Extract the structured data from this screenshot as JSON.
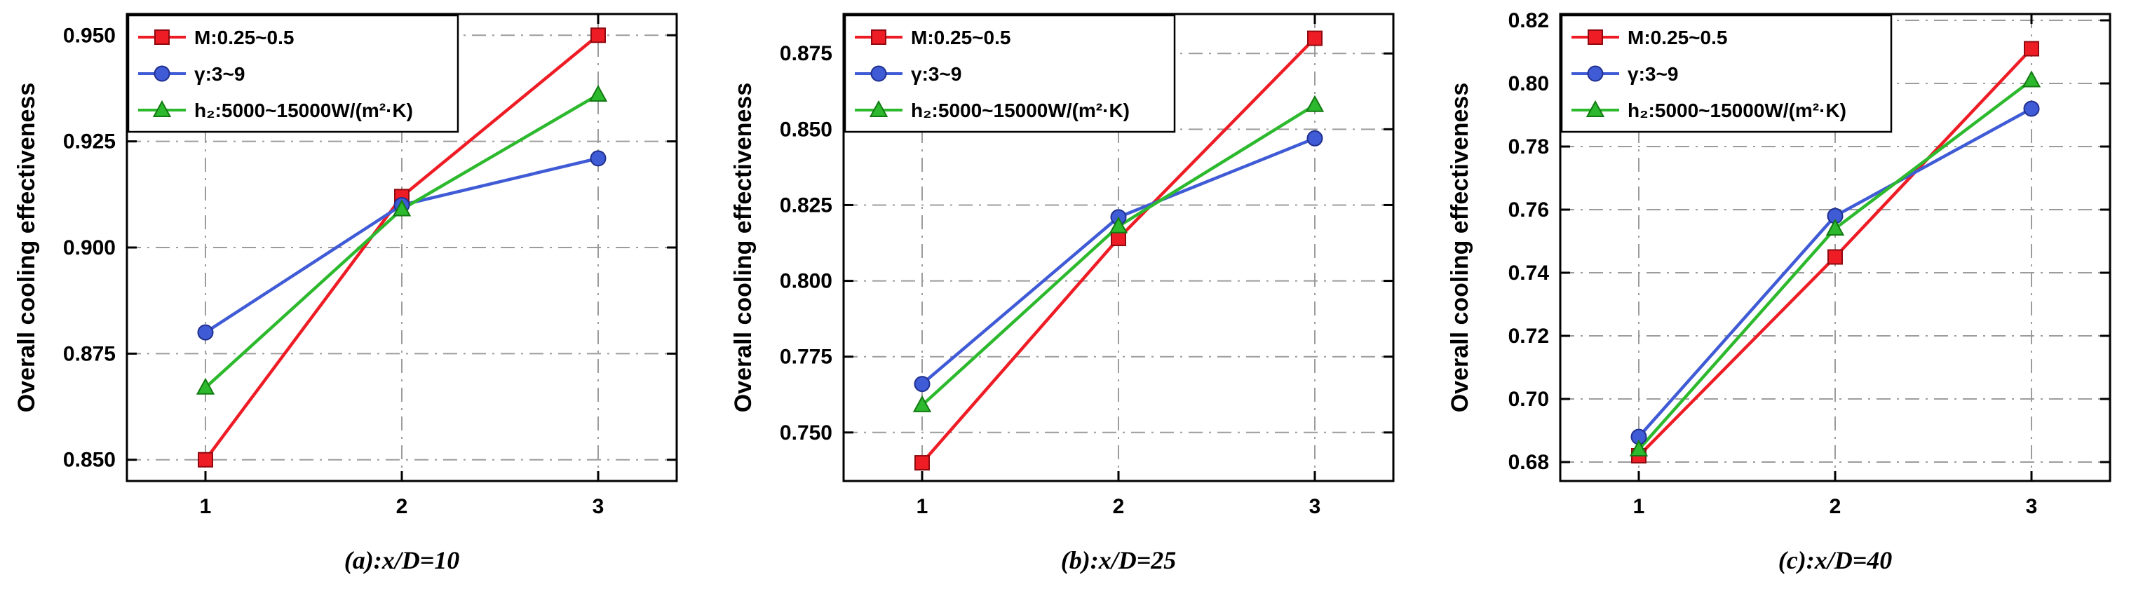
{
  "figure": {
    "ylabel": "Overall cooling effectiveness",
    "legend_entries": [
      "M:0.25~0.5",
      "γ:3~9",
      "h₂:5000~15000W/(m²·K)"
    ],
    "grid_color": "#9c9c9c",
    "frame_color": "#000000"
  },
  "chart_data": [
    {
      "type": "line",
      "caption": "(a):x/D=10",
      "title": "",
      "xlabel": "",
      "ylabel": "Overall cooling effectiveness",
      "x": [
        1,
        2,
        3
      ],
      "xticks": [
        "1",
        "2",
        "3"
      ],
      "xlim": [
        0.6,
        3.4
      ],
      "ylim": [
        0.845,
        0.955
      ],
      "yticks": [
        "0.850",
        "0.875",
        "0.900",
        "0.925",
        "0.950"
      ],
      "grid": "dash-dot",
      "legend_position": "top-left",
      "series": [
        {
          "name": "M:0.25~0.5",
          "marker": "square",
          "color": "#ee1c25",
          "edge": "#8f0a10",
          "values": [
            0.85,
            0.912,
            0.95
          ]
        },
        {
          "name": "γ:3~9",
          "marker": "circle",
          "color": "#3f5bd5",
          "edge": "#20308f",
          "values": [
            0.88,
            0.91,
            0.921
          ]
        },
        {
          "name": "h₂:5000~15000W/(m²·K)",
          "marker": "triangle",
          "color": "#2db92d",
          "edge": "#127a12",
          "values": [
            0.867,
            0.909,
            0.936
          ]
        }
      ]
    },
    {
      "type": "line",
      "caption": "(b):x/D=25",
      "title": "",
      "xlabel": "",
      "ylabel": "Overall cooling effectiveness",
      "x": [
        1,
        2,
        3
      ],
      "xticks": [
        "1",
        "2",
        "3"
      ],
      "xlim": [
        0.6,
        3.4
      ],
      "ylim": [
        0.734,
        0.888
      ],
      "yticks": [
        "0.750",
        "0.775",
        "0.800",
        "0.825",
        "0.850",
        "0.875"
      ],
      "grid": "dash-dot",
      "legend_position": "top-left",
      "series": [
        {
          "name": "M:0.25~0.5",
          "marker": "square",
          "color": "#ee1c25",
          "edge": "#8f0a10",
          "values": [
            0.74,
            0.814,
            0.88
          ]
        },
        {
          "name": "γ:3~9",
          "marker": "circle",
          "color": "#3f5bd5",
          "edge": "#20308f",
          "values": [
            0.766,
            0.821,
            0.847
          ]
        },
        {
          "name": "h₂:5000~15000W/(m²·K)",
          "marker": "triangle",
          "color": "#2db92d",
          "edge": "#127a12",
          "values": [
            0.759,
            0.818,
            0.858
          ]
        }
      ]
    },
    {
      "type": "line",
      "caption": "(c):x/D=40",
      "title": "",
      "xlabel": "",
      "ylabel": "Overall cooling effectiveness",
      "x": [
        1,
        2,
        3
      ],
      "xticks": [
        "1",
        "2",
        "3"
      ],
      "xlim": [
        0.6,
        3.4
      ],
      "ylim": [
        0.674,
        0.822
      ],
      "yticks": [
        "0.68",
        "0.70",
        "0.72",
        "0.74",
        "0.76",
        "0.78",
        "0.80",
        "0.82"
      ],
      "grid": "dash-dot",
      "legend_position": "top-left",
      "series": [
        {
          "name": "M:0.25~0.5",
          "marker": "square",
          "color": "#ee1c25",
          "edge": "#8f0a10",
          "values": [
            0.682,
            0.745,
            0.811
          ]
        },
        {
          "name": "γ:3~9",
          "marker": "circle",
          "color": "#3f5bd5",
          "edge": "#20308f",
          "values": [
            0.688,
            0.758,
            0.792
          ]
        },
        {
          "name": "h₂:5000~15000W/(m²·K)",
          "marker": "triangle",
          "color": "#2db92d",
          "edge": "#127a12",
          "values": [
            0.684,
            0.754,
            0.801
          ]
        }
      ]
    }
  ]
}
